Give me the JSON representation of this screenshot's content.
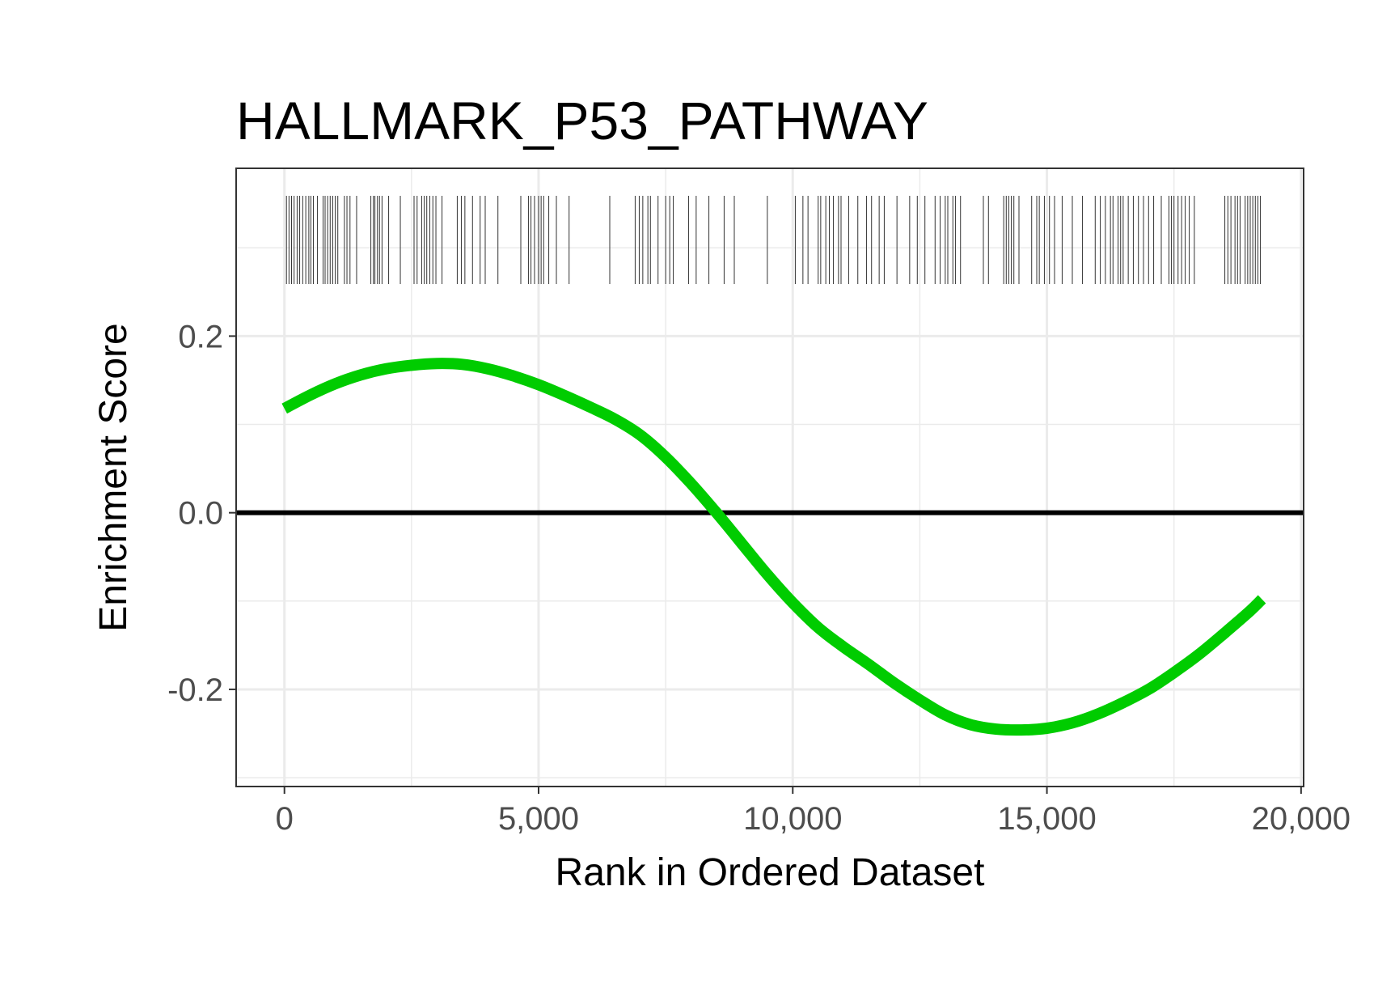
{
  "chart_data": {
    "type": "line",
    "title": "HALLMARK_P53_PATHWAY",
    "xlabel": "Rank in Ordered Dataset",
    "ylabel": "Enrichment Score",
    "xlim": [
      -950,
      20050
    ],
    "ylim": [
      -0.31,
      0.39
    ],
    "x_ticks": [
      0,
      5000,
      10000,
      15000,
      20000
    ],
    "x_tick_labels": [
      "0",
      "5,000",
      "10,000",
      "15,000",
      "20,000"
    ],
    "y_ticks": [
      -0.2,
      0.0,
      0.2
    ],
    "y_tick_labels": [
      "-0.2",
      "0.0",
      "0.2"
    ],
    "grid": true,
    "reference_line_y": 0.0,
    "series": [
      {
        "color": "#00cc00",
        "x": [
          0,
          500,
          1000,
          1500,
          2000,
          2500,
          3000,
          3500,
          4000,
          4500,
          5000,
          5500,
          6000,
          6500,
          7000,
          7500,
          8000,
          8500,
          9000,
          9500,
          10000,
          10500,
          11000,
          11500,
          12000,
          12500,
          13000,
          13500,
          14000,
          14500,
          15000,
          15500,
          16000,
          16500,
          17000,
          17500,
          18000,
          18500,
          19000,
          19230
        ],
        "y": [
          0.118,
          0.133,
          0.146,
          0.156,
          0.163,
          0.167,
          0.169,
          0.168,
          0.163,
          0.155,
          0.145,
          0.133,
          0.12,
          0.106,
          0.088,
          0.063,
          0.033,
          0.0,
          -0.035,
          -0.07,
          -0.102,
          -0.13,
          -0.152,
          -0.172,
          -0.193,
          -0.212,
          -0.229,
          -0.24,
          -0.245,
          -0.246,
          -0.244,
          -0.238,
          -0.228,
          -0.215,
          -0.2,
          -0.181,
          -0.16,
          -0.136,
          -0.111,
          -0.098
        ]
      }
    ],
    "gene_hits": [
      40,
      90,
      140,
      190,
      250,
      300,
      360,
      420,
      480,
      520,
      570,
      650,
      760,
      800,
      850,
      900,
      950,
      1000,
      1050,
      1180,
      1230,
      1290,
      1420,
      1700,
      1750,
      1780,
      1830,
      1870,
      1920,
      2050,
      2280,
      2550,
      2610,
      2700,
      2750,
      2800,
      2860,
      2920,
      2980,
      3100,
      3400,
      3480,
      3550,
      3700,
      3850,
      3950,
      4200,
      4650,
      4800,
      4850,
      4920,
      5000,
      5050,
      5100,
      5200,
      5350,
      5600,
      6400,
      6900,
      6980,
      7050,
      7150,
      7200,
      7350,
      7500,
      7580,
      7650,
      7950,
      8100,
      8350,
      8650,
      8850,
      9500,
      10050,
      10200,
      10300,
      10500,
      10550,
      10650,
      10720,
      10800,
      10900,
      10950,
      11100,
      11280,
      11450,
      11550,
      11700,
      11800,
      12050,
      12300,
      12450,
      12600,
      12800,
      12900,
      13000,
      13050,
      13150,
      13200,
      13300,
      13750,
      13850,
      14150,
      14200,
      14250,
      14300,
      14350,
      14450,
      14700,
      14800,
      14850,
      14950,
      15050,
      15150,
      15300,
      15500,
      15700,
      15950,
      16050,
      16150,
      16250,
      16300,
      16400,
      16450,
      16500,
      16600,
      16700,
      16800,
      16900,
      17000,
      17100,
      17250,
      17400,
      17450,
      17500,
      17580,
      17650,
      17720,
      17800,
      17900,
      18500,
      18560,
      18620,
      18700,
      18750,
      18800,
      18900,
      18950,
      19000,
      19050,
      19100,
      19150,
      19200
    ]
  }
}
